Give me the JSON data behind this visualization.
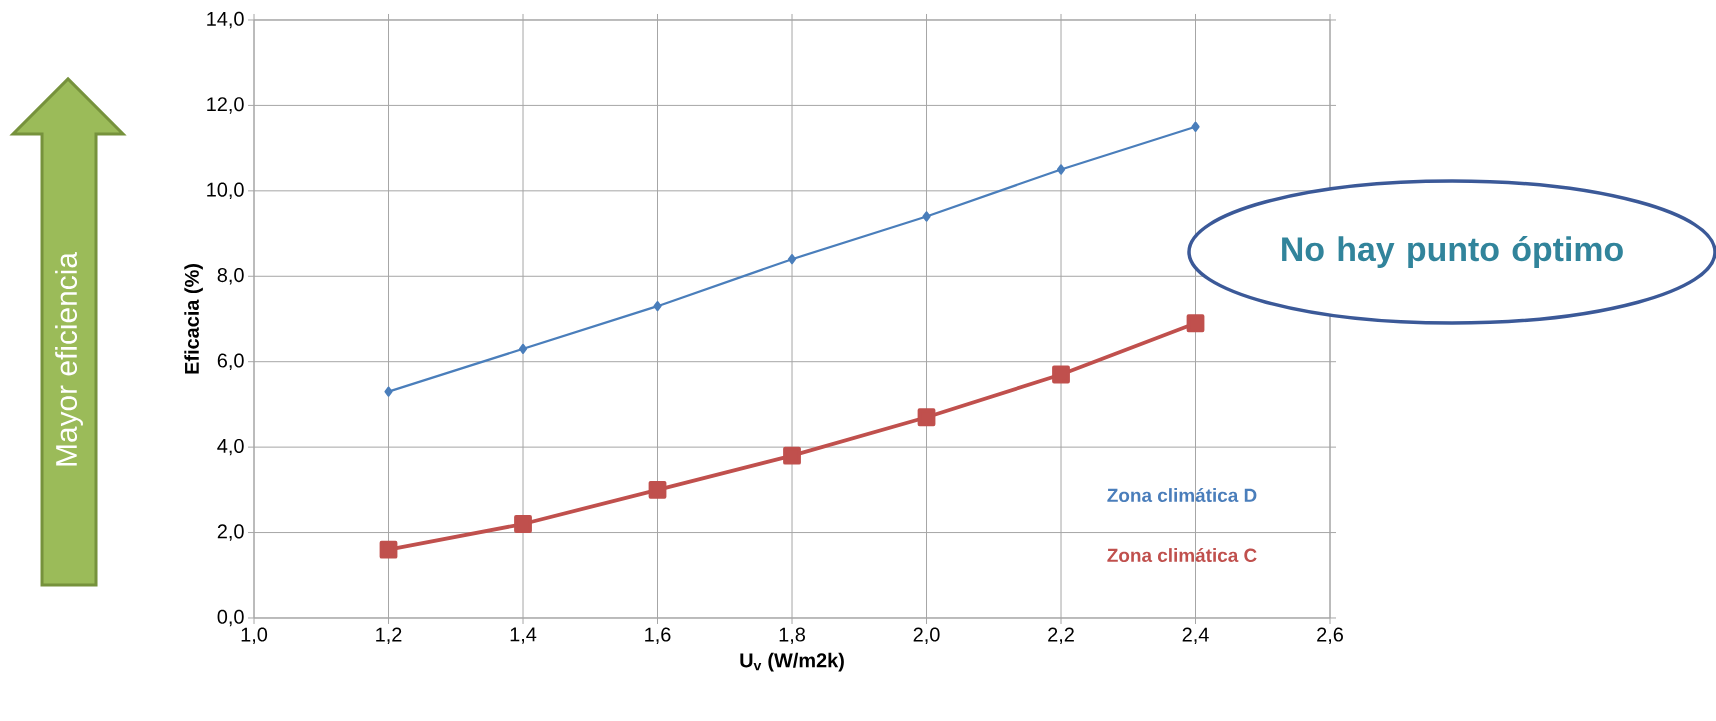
{
  "chart_data": {
    "type": "line",
    "xlabel": "U$_{v}$ (W/m2k)",
    "ylabel": "Eficacia (%)",
    "x": [
      1.2,
      1.4,
      1.6,
      1.8,
      2.0,
      2.2,
      2.4
    ],
    "series": [
      {
        "name": "Zona climática D",
        "color": "#4a7ebb",
        "marker": "diamond",
        "values": [
          5.3,
          6.3,
          7.3,
          8.4,
          9.4,
          10.5,
          11.5
        ]
      },
      {
        "name": "Zona climática C",
        "color": "#c0504d",
        "marker": "square",
        "values": [
          1.6,
          2.2,
          3.0,
          3.8,
          4.7,
          5.7,
          6.9
        ]
      }
    ],
    "xlim": [
      1.0,
      2.6
    ],
    "ylim": [
      0,
      14
    ],
    "xticks": [
      {
        "value": 1.0,
        "label": "1,0"
      },
      {
        "value": 1.2,
        "label": "1,2"
      },
      {
        "value": 1.4,
        "label": "1,4"
      },
      {
        "value": 1.6,
        "label": "1,6"
      },
      {
        "value": 1.8,
        "label": "1,8"
      },
      {
        "value": 2.0,
        "label": "2,0"
      },
      {
        "value": 2.2,
        "label": "2,2"
      },
      {
        "value": 2.4,
        "label": "2,4"
      },
      {
        "value": 2.6,
        "label": "2,6"
      }
    ],
    "yticks": [
      {
        "value": 0,
        "label": "0,0"
      },
      {
        "value": 2,
        "label": "2,0"
      },
      {
        "value": 4,
        "label": "4,0"
      },
      {
        "value": 6,
        "label": "6,0"
      },
      {
        "value": 8,
        "label": "8,0"
      },
      {
        "value": 10,
        "label": "10,0"
      },
      {
        "value": 12,
        "label": "12,0"
      },
      {
        "value": 14,
        "label": "14,0"
      }
    ],
    "grid": true,
    "annotations": [
      "No hay punto óptimo",
      "Mayor eficiencia"
    ]
  }
}
